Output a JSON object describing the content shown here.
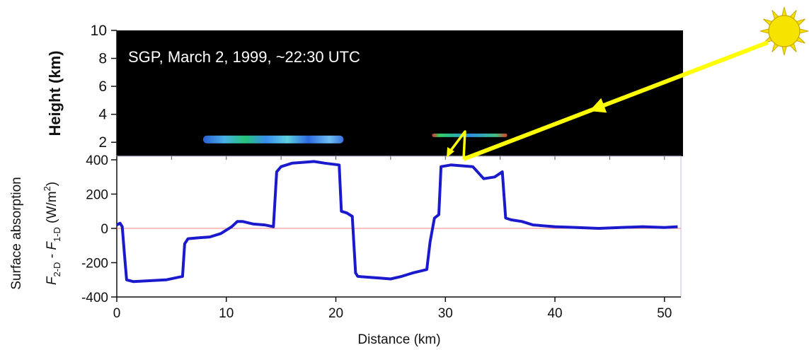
{
  "chart_data": [
    {
      "type": "heatmap",
      "title": "SGP, March 2, 1999, ~22:30 UTC",
      "ylabel": "Height (km)",
      "ylim": [
        1,
        10
      ],
      "xlim": [
        0,
        51
      ],
      "y_ticks": [
        2,
        4,
        6,
        8,
        10
      ],
      "background_color": "#000000",
      "cloud_layers": [
        {
          "name": "",
          "x_start": 7.8,
          "x_end": 20.5,
          "height_km": 2.2
        },
        {
          "name": "",
          "x_start": 28.5,
          "x_end": 35.3,
          "height_km": 2.5
        }
      ]
    },
    {
      "type": "line",
      "title": "",
      "xlabel": "Distance (km)",
      "ylabel_outer": "Surface absorption",
      "ylabel_inner": {
        "f": "F",
        "sub_2d": "2-D",
        "minus": " - ",
        "sub_1d": "1-D",
        "unit": " (W/m",
        "sup": "2",
        "close": ")"
      },
      "xlim": [
        0,
        51.5
      ],
      "ylim": [
        -400,
        400
      ],
      "x_ticks": [
        0,
        10,
        20,
        30,
        40,
        50
      ],
      "y_ticks": [
        -400,
        -200,
        0,
        200,
        400
      ],
      "grid": false,
      "zero_line_color": "#f08080",
      "series": [
        {
          "name": "",
          "color": "#1a1acc",
          "x": [
            0.0,
            0.3,
            0.5,
            0.7,
            0.9,
            1.5,
            3.0,
            4.5,
            6.0,
            6.2,
            6.5,
            7.5,
            8.5,
            9.5,
            10.5,
            11.0,
            11.5,
            12.5,
            13.5,
            14.3,
            14.6,
            15.0,
            16.0,
            17.0,
            18.0,
            19.0,
            20.3,
            20.5,
            21.0,
            21.5,
            21.8,
            22.0,
            23.0,
            24.0,
            25.0,
            26.0,
            27.0,
            28.3,
            28.6,
            29.0,
            29.4,
            29.6,
            30.5,
            31.5,
            32.5,
            33.5,
            34.5,
            35.2,
            35.5,
            36.0,
            37.0,
            38.0,
            40.0,
            42.0,
            44.0,
            46.0,
            48.0,
            50.0,
            51.2
          ],
          "y": [
            20,
            30,
            10,
            -150,
            -300,
            -310,
            -305,
            -300,
            -280,
            -90,
            -60,
            -55,
            -50,
            -30,
            10,
            40,
            40,
            25,
            20,
            10,
            330,
            360,
            380,
            385,
            390,
            380,
            370,
            100,
            90,
            70,
            -260,
            -280,
            -285,
            -290,
            -295,
            -280,
            -260,
            -240,
            -80,
            60,
            80,
            360,
            370,
            365,
            360,
            290,
            300,
            330,
            60,
            50,
            40,
            20,
            10,
            5,
            0,
            5,
            10,
            5,
            10
          ]
        }
      ]
    }
  ],
  "sun": {
    "icon": "sun-icon",
    "color": "#f5e400"
  },
  "arrow_color": "#ffff00"
}
